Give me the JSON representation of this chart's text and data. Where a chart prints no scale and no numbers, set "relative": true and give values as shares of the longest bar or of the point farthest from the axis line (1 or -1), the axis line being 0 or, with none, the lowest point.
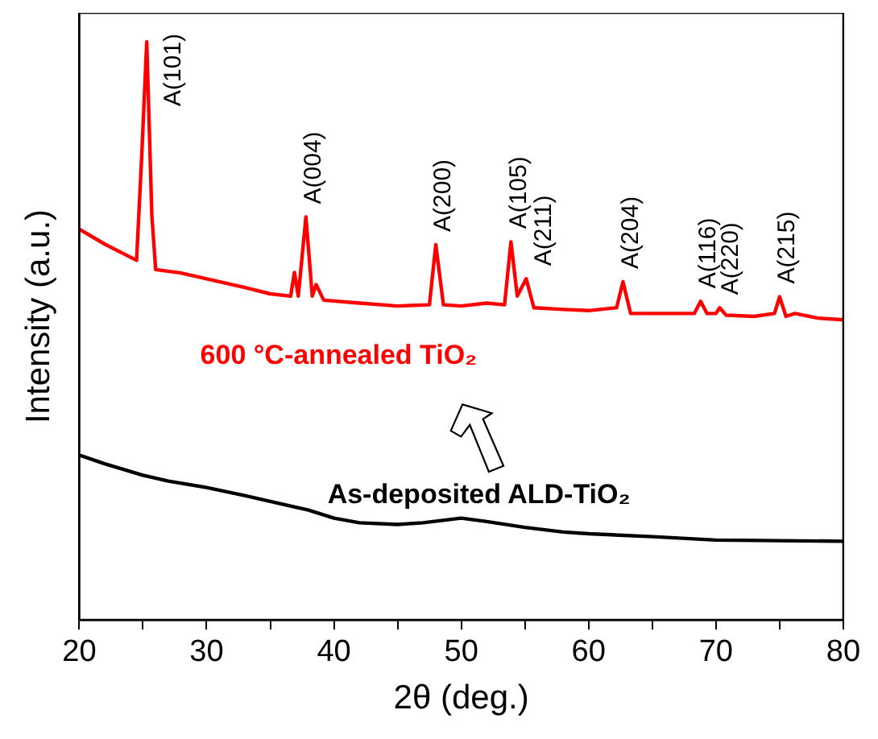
{
  "chart_data": {
    "type": "line",
    "relative": true,
    "xlabel": "2θ (deg.)",
    "ylabel": "Intensity (a.u.)",
    "xlim": [
      20,
      80
    ],
    "xticks": [
      20,
      {
        "value": 25,
        "label": null
      },
      30,
      {
        "value": 35,
        "label": null
      },
      40,
      {
        "value": 45,
        "label": null
      },
      50,
      {
        "value": 55,
        "label": null
      },
      60,
      {
        "value": 65,
        "label": null
      },
      70,
      {
        "value": 75,
        "label": null
      },
      80
    ],
    "grid": false,
    "legend": false,
    "marker": "none",
    "line_style": "solid",
    "series": [
      {
        "name": "600 °C-annealed TiO₂",
        "color": "#ff0000",
        "x": [
          20,
          22,
          24.5,
          24.9,
          25.3,
          25.7,
          26,
          28,
          30,
          33,
          35,
          36.6,
          36.9,
          37.2,
          37.8,
          38.3,
          38.6,
          39.2,
          42,
          45,
          47.5,
          48,
          48.6,
          50,
          52,
          53.4,
          53.9,
          54.4,
          55.1,
          55.7,
          58,
          60,
          62.2,
          62.7,
          63.3,
          66,
          68.3,
          68.8,
          69.3,
          70,
          70.3,
          70.8,
          73,
          74.6,
          75,
          75.5,
          76.2,
          78,
          80
        ],
        "values": [
          0.676,
          0.65,
          0.622,
          0.8,
          1,
          0.7,
          0.606,
          0.6,
          0.59,
          0.575,
          0.564,
          0.56,
          0.601,
          0.56,
          0.697,
          0.56,
          0.58,
          0.553,
          0.548,
          0.543,
          0.545,
          0.649,
          0.545,
          0.543,
          0.548,
          0.545,
          0.654,
          0.56,
          0.59,
          0.54,
          0.537,
          0.535,
          0.54,
          0.585,
          0.53,
          0.53,
          0.53,
          0.551,
          0.53,
          0.53,
          0.54,
          0.527,
          0.525,
          0.53,
          0.559,
          0.525,
          0.53,
          0.522,
          0.519
        ]
      },
      {
        "name": "As-deposited ALD-TiO₂",
        "color": "#000000",
        "x": [
          20,
          22,
          25,
          27,
          30,
          33,
          35,
          38,
          40,
          42,
          45,
          47,
          50,
          52,
          55,
          58,
          60,
          65,
          70,
          75,
          80
        ],
        "values": [
          0.285,
          0.27,
          0.25,
          0.24,
          0.229,
          0.215,
          0.205,
          0.19,
          0.176,
          0.168,
          0.165,
          0.168,
          0.176,
          0.17,
          0.16,
          0.152,
          0.149,
          0.144,
          0.138,
          0.137,
          0.136
        ]
      }
    ],
    "annotations": [
      {
        "text": "A(101)",
        "x": 25.3,
        "y": 1
      },
      {
        "text": "A(004)",
        "x": 37.8,
        "y": 0.697
      },
      {
        "text": "A(200)",
        "x": 48,
        "y": 0.649
      },
      {
        "text": "A(105)",
        "x": 53.9,
        "y": 0.654
      },
      {
        "text": "A(211)",
        "x": 55.1,
        "y": 0.59
      },
      {
        "text": "A(204)",
        "x": 62.7,
        "y": 0.585
      },
      {
        "text": "A(116)",
        "x": 68.8,
        "y": 0.551
      },
      {
        "text": "A(220)",
        "x": 70.3,
        "y": 0.54
      },
      {
        "text": "A(215)",
        "x": 75,
        "y": 0.559
      }
    ]
  }
}
